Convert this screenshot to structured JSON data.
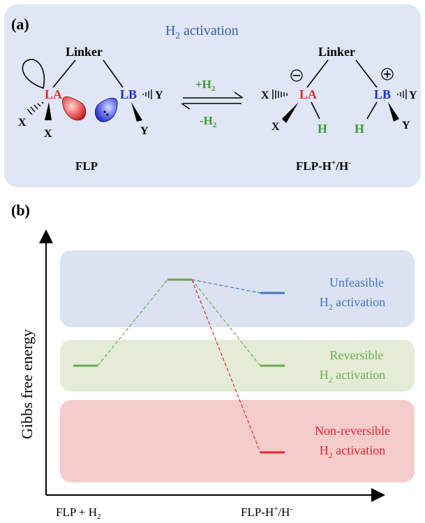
{
  "panel_a": {
    "label": "(a)",
    "title_main": "H",
    "title_sub": "2",
    "title_rest": " activation",
    "left": {
      "linker": "Linker",
      "acid": "LA",
      "base": "LB",
      "x_top": "X",
      "x_bottom": "X",
      "y_right": "Y",
      "y_bottom": "Y",
      "caption": "FLP"
    },
    "arrow": {
      "forward": "+H",
      "forward_sub": "2",
      "backward": "-H",
      "backward_sub": "2"
    },
    "right": {
      "linker": "Linker",
      "acid": "LA",
      "base": "LB",
      "x_top": "X",
      "x_bottom": "X",
      "y_right": "Y",
      "y_bottom": "Y",
      "h_acid": "H",
      "h_base": "H",
      "minus_charge": "−",
      "plus_charge": "+",
      "caption_main": "FLP-H",
      "caption_sup1": "+",
      "caption_mid": "/H",
      "caption_sup2": "-"
    }
  },
  "panel_b": {
    "label": "(b)",
    "ylabel": "Gibbs free energy",
    "x_left_main": "FLP + H",
    "x_left_sub": "2",
    "x_right_main": "FLP-H",
    "x_right_sup1": "+",
    "x_right_mid": "/H",
    "x_right_sup2": "-",
    "bands": [
      {
        "name": "unfeasible",
        "line1": "Unfeasible",
        "line2_main": "H",
        "line2_sub": "2",
        "line2_rest": " activation",
        "color": "#4472c4"
      },
      {
        "name": "reversible",
        "line1": "Reversible",
        "line2_main": "H",
        "line2_sub": "2",
        "line2_rest": " activation",
        "color": "#70ad47"
      },
      {
        "name": "non-reversible",
        "line1": "Non-reversible",
        "line2_main": "H",
        "line2_sub": "2",
        "line2_rest": " activation",
        "color": "#e8262a"
      }
    ]
  }
}
